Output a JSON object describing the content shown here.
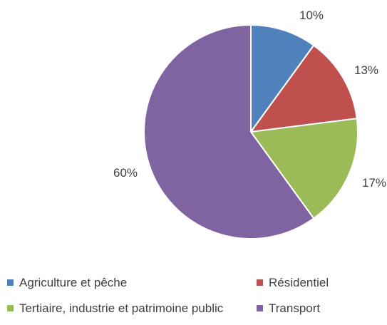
{
  "chart_data": {
    "type": "pie",
    "title": "",
    "slices": [
      {
        "label": "Agriculture et pêche",
        "value": 10,
        "data_label": "10%",
        "color": "#4F81BD"
      },
      {
        "label": "Résidentiel",
        "value": 13,
        "data_label": "13%",
        "color": "#C0504D"
      },
      {
        "label": "Tertiaire, industrie et patrimoine public",
        "value": 17,
        "data_label": "17%",
        "color": "#9BBB59"
      },
      {
        "label": "Transport",
        "value": 60,
        "data_label": "60%",
        "color": "#8064A2"
      }
    ],
    "start_angle_deg": 0,
    "direction": "clockwise",
    "legend_position": "bottom"
  }
}
